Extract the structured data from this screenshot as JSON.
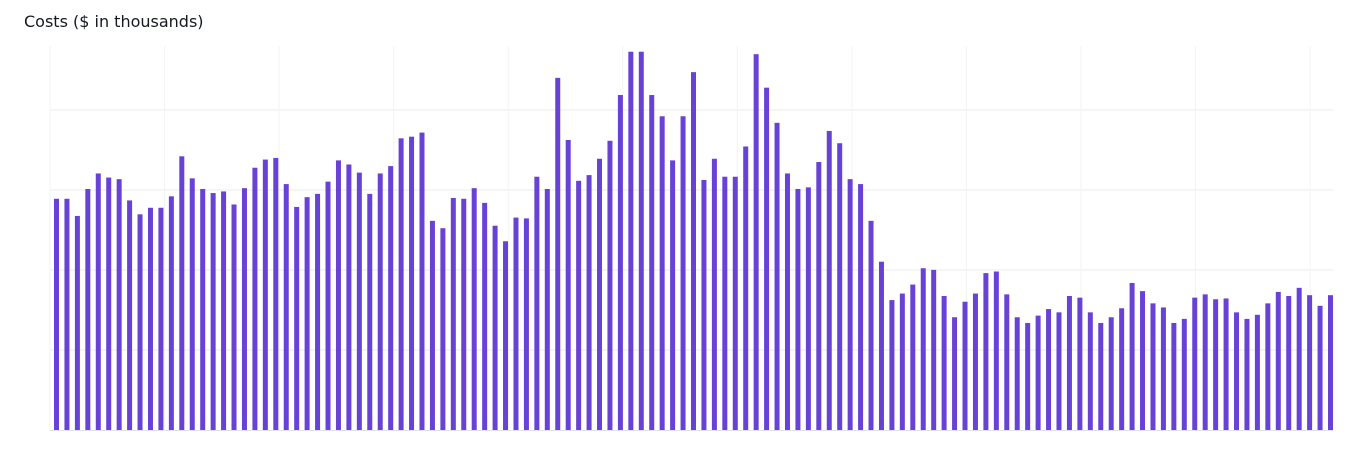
{
  "chart": {
    "title": "Costs ($ in thousands)"
  },
  "colors": {
    "bar": "#6842d6",
    "grid": "#eaeded"
  },
  "chart_data": {
    "type": "bar",
    "title": "Costs ($ in thousands)",
    "xlabel": "",
    "ylabel": "",
    "ylim": [
      0,
      470
    ],
    "grid": true,
    "legend": "none",
    "values": [
      283,
      283,
      262,
      295,
      314,
      309,
      307,
      281,
      264,
      272,
      272,
      286,
      335,
      308,
      295,
      290,
      292,
      276,
      296,
      321,
      331,
      333,
      301,
      273,
      285,
      289,
      304,
      330,
      325,
      315,
      289,
      314,
      323,
      357,
      359,
      364,
      256,
      247,
      284,
      283,
      296,
      278,
      250,
      231,
      260,
      259,
      310,
      295,
      431,
      355,
      305,
      312,
      332,
      354,
      410,
      463,
      463,
      410,
      384,
      330,
      384,
      438,
      306,
      332,
      310,
      310,
      347,
      460,
      419,
      376,
      314,
      295,
      297,
      328,
      366,
      351,
      307,
      301,
      256,
      206,
      159,
      167,
      178,
      198,
      196,
      164,
      138,
      157,
      167,
      192,
      194,
      166,
      138,
      131,
      140,
      148,
      144,
      164,
      162,
      144,
      131,
      138,
      149,
      180,
      170,
      155,
      150,
      131,
      136,
      162,
      166,
      160,
      161,
      144,
      136,
      141,
      155,
      169,
      164,
      174,
      165,
      152,
      165
    ]
  }
}
